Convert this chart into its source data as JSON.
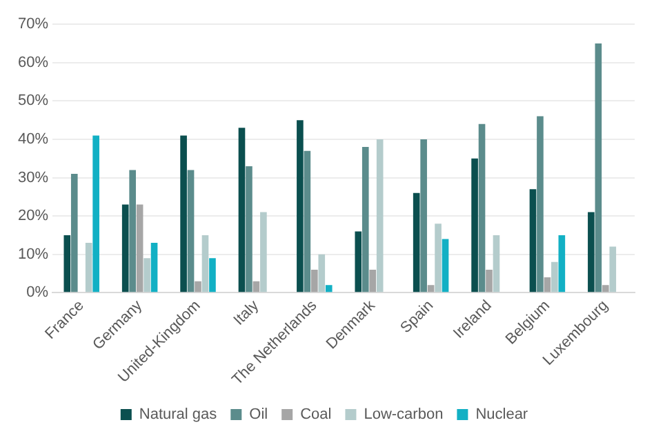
{
  "chart_data": {
    "type": "bar",
    "categories": [
      "France",
      "Germany",
      "United-Kingdom",
      "Italy",
      "The Netherlands",
      "Denmark",
      "Spain",
      "Ireland",
      "Belgium",
      "Luxembourg"
    ],
    "series": [
      {
        "name": "Natural gas",
        "color": "#0b4f4f",
        "values": [
          15,
          23,
          41,
          43,
          45,
          16,
          26,
          35,
          27,
          21
        ]
      },
      {
        "name": "Oil",
        "color": "#5b8c8c",
        "values": [
          31,
          32,
          32,
          33,
          37,
          38,
          40,
          44,
          46,
          65
        ]
      },
      {
        "name": "Coal",
        "color": "#a6a6a6",
        "values": [
          0,
          23,
          3,
          3,
          6,
          6,
          2,
          6,
          4,
          2
        ]
      },
      {
        "name": "Low-carbon",
        "color": "#b4cccc",
        "values": [
          13,
          9,
          15,
          21,
          10,
          40,
          18,
          15,
          8,
          12
        ]
      },
      {
        "name": "Nuclear",
        "color": "#12b0c4",
        "values": [
          41,
          13,
          9,
          0,
          2,
          0,
          14,
          0,
          15,
          0
        ]
      }
    ],
    "ylim": [
      0,
      70
    ],
    "yticks": [
      {
        "value": 0,
        "label": "0%"
      },
      {
        "value": 10,
        "label": "10%"
      },
      {
        "value": 20,
        "label": "20%"
      },
      {
        "value": 30,
        "label": "30%"
      },
      {
        "value": 40,
        "label": "40%"
      },
      {
        "value": 50,
        "label": "50%"
      },
      {
        "value": 60,
        "label": "60%"
      },
      {
        "value": 70,
        "label": "70%"
      }
    ],
    "grid": "y",
    "legend": "bottom"
  }
}
